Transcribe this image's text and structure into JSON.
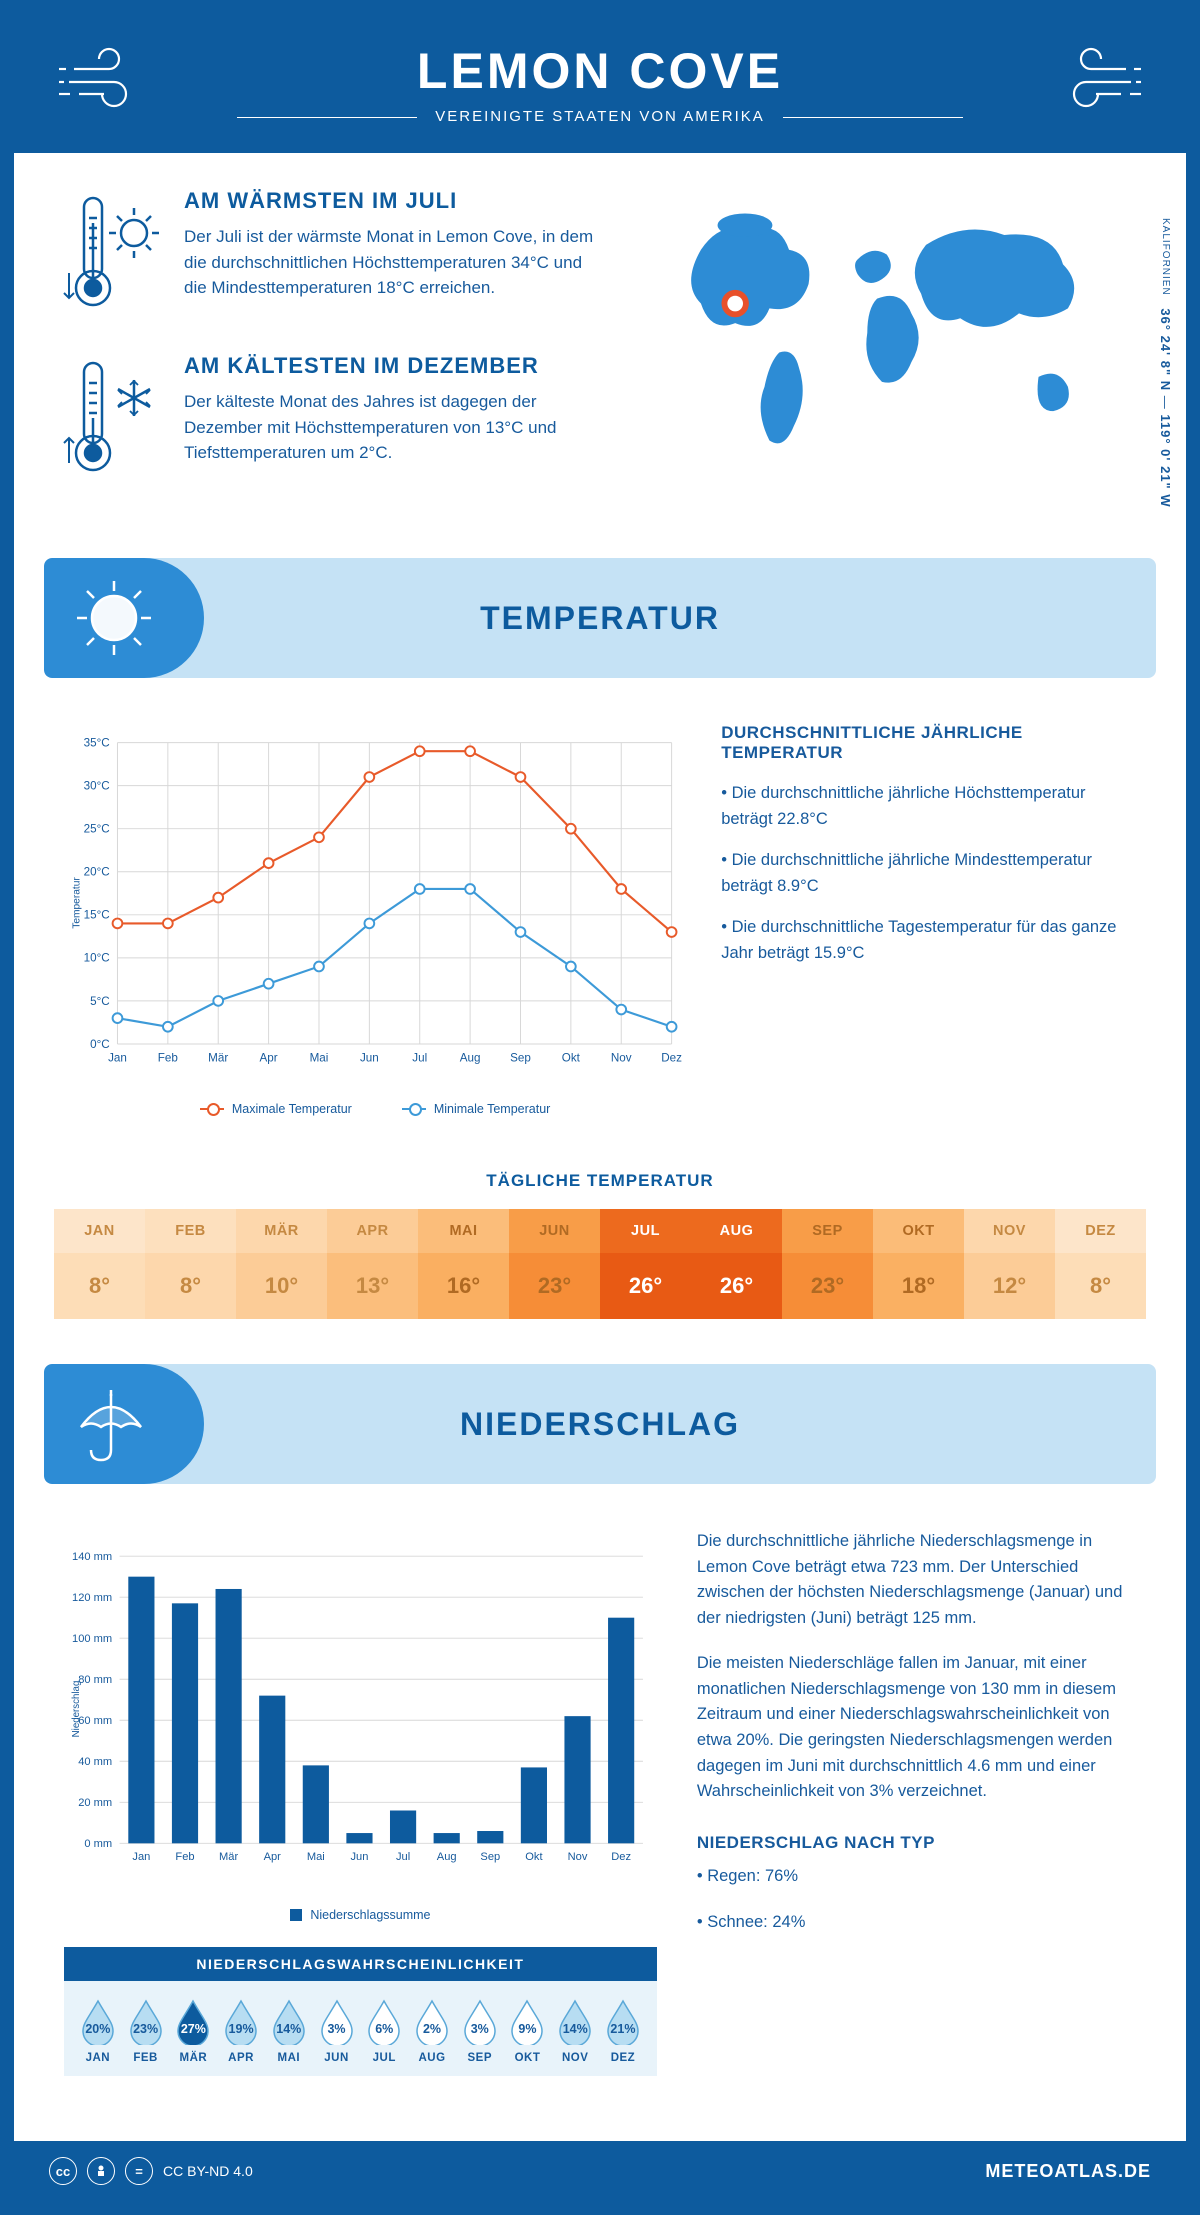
{
  "header": {
    "title": "LEMON COVE",
    "subtitle": "VEREINIGTE STAATEN VON AMERIKA"
  },
  "coords": {
    "lat": "36° 24' 8\" N",
    "lon": "119° 0' 21\" W",
    "state": "KALIFORNIEN"
  },
  "warm": {
    "title": "AM WÄRMSTEN IM JULI",
    "text": "Der Juli ist der wärmste Monat in Lemon Cove, in dem die durchschnittlichen Höchsttemperaturen 34°C und die Mindesttemperaturen 18°C erreichen."
  },
  "cold": {
    "title": "AM KÄLTESTEN IM DEZEMBER",
    "text": "Der kälteste Monat des Jahres ist dagegen der Dezember mit Höchsttemperaturen von 13°C und Tiefsttemperaturen um 2°C."
  },
  "temp_section": "TEMPERATUR",
  "months": [
    "Jan",
    "Feb",
    "Mär",
    "Apr",
    "Mai",
    "Jun",
    "Jul",
    "Aug",
    "Sep",
    "Okt",
    "Nov",
    "Dez"
  ],
  "months_upper": [
    "JAN",
    "FEB",
    "MÄR",
    "APR",
    "MAI",
    "JUN",
    "JUL",
    "AUG",
    "SEP",
    "OKT",
    "NOV",
    "DEZ"
  ],
  "temp_chart": {
    "ylabel": "Temperatur",
    "ylim": [
      0,
      35
    ],
    "ytick_step": 5,
    "max_series": {
      "label": "Maximale Temperatur",
      "color": "#e85a2a",
      "values": [
        14,
        14,
        17,
        21,
        24,
        31,
        34,
        34,
        31,
        25,
        18,
        13
      ]
    },
    "min_series": {
      "label": "Minimale Temperatur",
      "color": "#3d9ad8",
      "values": [
        3,
        2,
        5,
        7,
        9,
        14,
        18,
        18,
        13,
        9,
        4,
        2
      ]
    },
    "grid_color": "#d7d7d7",
    "background": "#ffffff",
    "line_width": 2.2,
    "marker_size": 5
  },
  "temp_info": {
    "heading": "DURCHSCHNITTLICHE JÄHRLICHE TEMPERATUR",
    "b1": "• Die durchschnittliche jährliche Höchsttemperatur beträgt 22.8°C",
    "b2": "• Die durchschnittliche jährliche Mindesttemperatur beträgt 8.9°C",
    "b3": "• Die durchschnittliche Tagestemperatur für das ganze Jahr beträgt 15.9°C"
  },
  "daily": {
    "title": "TÄGLICHE TEMPERATUR",
    "values": [
      "8°",
      "8°",
      "10°",
      "13°",
      "16°",
      "23°",
      "26°",
      "26°",
      "23°",
      "18°",
      "12°",
      "8°"
    ],
    "head_colors": [
      "#fde5ca",
      "#fde0be",
      "#fdd7ac",
      "#fccc97",
      "#fbbd7a",
      "#f89d48",
      "#ed6a1e",
      "#ed6a1e",
      "#f89d48",
      "#fbbc78",
      "#fdd7ac",
      "#fde5ca"
    ],
    "val_colors": [
      "#fdddb7",
      "#fdd7ac",
      "#fccc97",
      "#fbbe7c",
      "#faaf61",
      "#f68d37",
      "#e85a14",
      "#e85a14",
      "#f68d37",
      "#fab062",
      "#fccc97",
      "#fdddb7"
    ],
    "text_colors": [
      "#c58942",
      "#c58942",
      "#c58942",
      "#c58942",
      "#b06a23",
      "#b06a23",
      "#ffffff",
      "#ffffff",
      "#b06a23",
      "#b06a23",
      "#c58942",
      "#c58942"
    ]
  },
  "precip_section": "NIEDERSCHLAG",
  "precip_chart": {
    "ylabel": "Niederschlag",
    "legend": "Niederschlagssumme",
    "ylim": [
      0,
      140
    ],
    "ytick_step": 20,
    "values": [
      130,
      117,
      124,
      72,
      38,
      5,
      16,
      5,
      6,
      37,
      62,
      110
    ],
    "bar_color": "#0d5b9e",
    "grid_color": "#d7d7d7",
    "bar_width": 0.6
  },
  "precip_info": {
    "p1": "Die durchschnittliche jährliche Niederschlagsmenge in Lemon Cove beträgt etwa 723 mm. Der Unterschied zwischen der höchsten Niederschlagsmenge (Januar) und der niedrigsten (Juni) beträgt 125 mm.",
    "p2": "Die meisten Niederschläge fallen im Januar, mit einer monatlichen Niederschlagsmenge von 130 mm in diesem Zeitraum und einer Niederschlagswahrscheinlichkeit von etwa 20%. Die geringsten Niederschlagsmengen werden dagegen im Juni mit durchschnittlich 4.6 mm und einer Wahrscheinlichkeit von 3% verzeichnet.",
    "type_heading": "NIEDERSCHLAG NACH TYP",
    "type1": "• Regen: 76%",
    "type2": "• Schnee: 24%"
  },
  "prob": {
    "title": "NIEDERSCHLAGSWAHRSCHEINLICHKEIT",
    "values": [
      20,
      23,
      27,
      19,
      14,
      3,
      6,
      2,
      3,
      9,
      14,
      21
    ],
    "max_idx": 2,
    "fill_full": "#0d5b9e",
    "fill_light": "#b7ddf2",
    "fill_empty": "#ffffff",
    "stroke": "#5aa8d8"
  },
  "footer": {
    "license": "CC BY-ND 4.0",
    "site": "METEOATLAS.DE"
  },
  "colors": {
    "primary": "#0d5b9e",
    "banner": "#c5e2f5",
    "tab": "#2d8cd5"
  }
}
